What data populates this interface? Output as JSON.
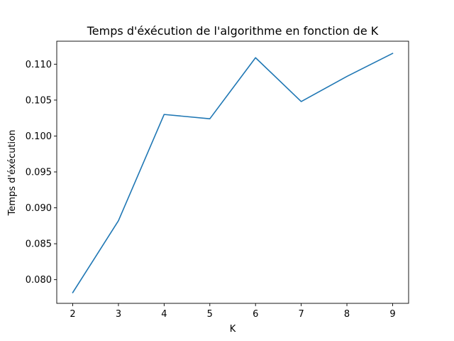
{
  "chart_data": {
    "type": "line",
    "title": "Temps d'éxécution de l'algorithme en fonction de K",
    "xlabel": "K",
    "ylabel": "Temps d'éxécution",
    "x": [
      2,
      3,
      4,
      5,
      6,
      7,
      8,
      9
    ],
    "series": [
      {
        "values": [
          0.0782,
          0.0882,
          0.103,
          0.1024,
          0.1109,
          0.1048,
          0.1083,
          0.1115
        ],
        "color": "#1f77b4"
      }
    ],
    "xlim": [
      1.65,
      9.35
    ],
    "ylim": [
      0.0767,
      0.1132
    ],
    "xticks": [
      "2",
      "3",
      "4",
      "5",
      "6",
      "7",
      "8",
      "9"
    ],
    "xtick_values": [
      2,
      3,
      4,
      5,
      6,
      7,
      8,
      9
    ],
    "yticks": [
      "0.080",
      "0.085",
      "0.090",
      "0.095",
      "0.100",
      "0.105",
      "0.110"
    ],
    "ytick_values": [
      0.08,
      0.085,
      0.09,
      0.095,
      0.1,
      0.105,
      0.11
    ],
    "grid": false,
    "legend": "none"
  }
}
